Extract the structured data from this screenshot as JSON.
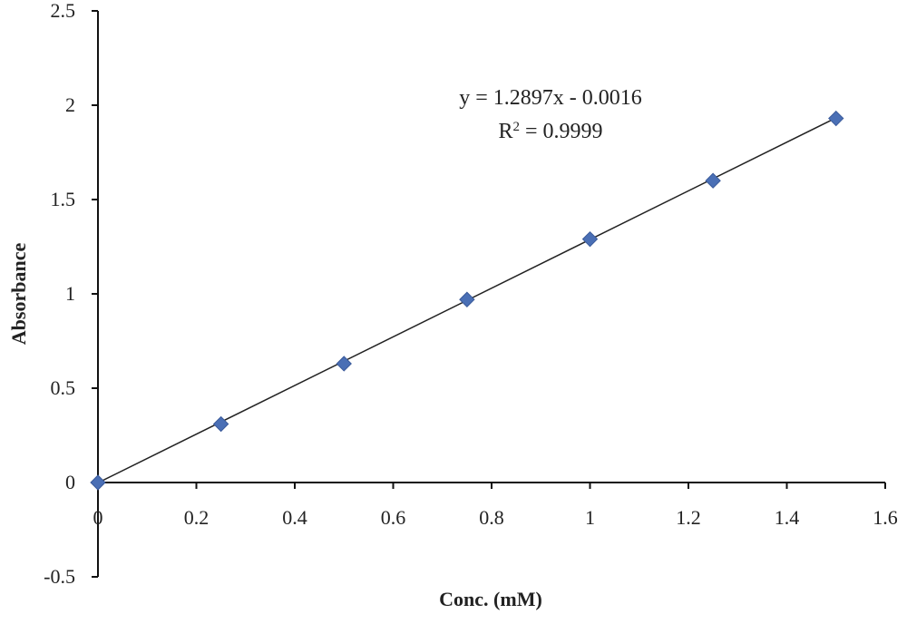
{
  "chart_data": {
    "type": "scatter",
    "title": "",
    "xlabel": "Conc. (mM)",
    "ylabel": "Absorbance",
    "xlim": [
      0,
      1.6
    ],
    "ylim": [
      -0.5,
      2.5
    ],
    "x_ticks": [
      "0",
      "0.2",
      "0.4",
      "0.6",
      "0.8",
      "1",
      "1.2",
      "1.4",
      "1.6"
    ],
    "y_ticks": [
      "-0.5",
      "0",
      "0.5",
      "1",
      "1.5",
      "2",
      "2.5"
    ],
    "grid": false,
    "legend": "none",
    "series": [
      {
        "x": [
          0,
          0.25,
          0.5,
          0.75,
          1.0,
          1.25,
          1.5
        ],
        "y": [
          0,
          0.31,
          0.63,
          0.97,
          1.29,
          1.6,
          1.93
        ],
        "marker": "diamond",
        "color": "#4a6fb5"
      }
    ],
    "trendline": {
      "type": "linear",
      "slope": 1.2897,
      "intercept": -0.0016,
      "x_range": [
        0,
        1.5
      ],
      "color": "#222222"
    },
    "annotations": {
      "equation": "y = 1.2897x - 0.0016",
      "r_squared_prefix": "R",
      "r_squared_sup": "2",
      "r_squared_value": " = 0.9999"
    }
  }
}
